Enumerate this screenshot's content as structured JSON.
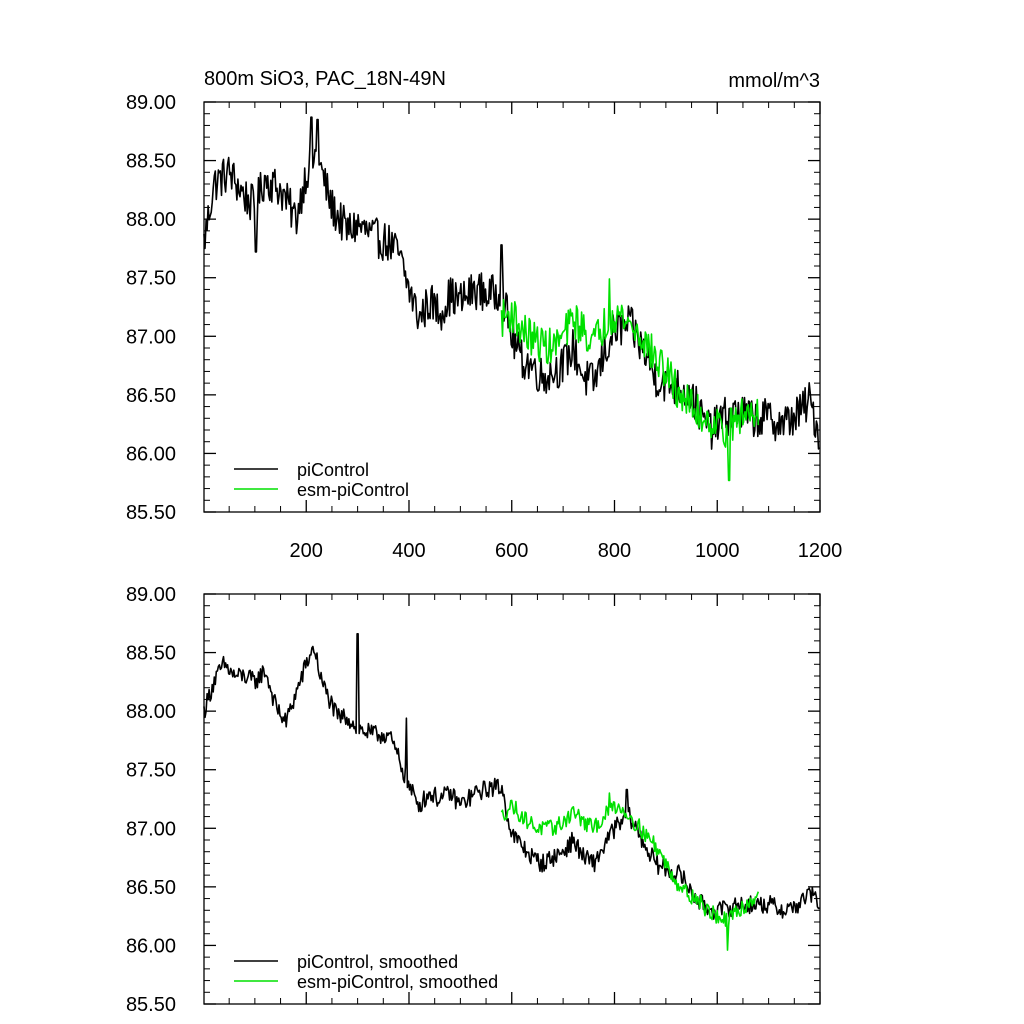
{
  "chart_data": [
    {
      "type": "line",
      "title": "800m SiO3, PAC_18N-49N",
      "units": "mmol/m^3",
      "xlim": [
        1,
        1200
      ],
      "ylim": [
        85.5,
        89.0
      ],
      "x_ticks": [
        200,
        400,
        600,
        800,
        1000,
        1200
      ],
      "y_ticks": [
        "85.50",
        "86.00",
        "86.50",
        "87.00",
        "87.50",
        "88.00",
        "88.50",
        "89.00"
      ],
      "legend_position": "bottom-left",
      "series": [
        {
          "name": "piControl",
          "color": "#000000",
          "x_start": 1,
          "x_end": 1200,
          "knots": [
            [
              1,
              87.8
            ],
            [
              20,
              88.3
            ],
            [
              50,
              88.4
            ],
            [
              80,
              88.2
            ],
            [
              100,
              88.1
            ],
            [
              120,
              88.35
            ],
            [
              150,
              88.25
            ],
            [
              180,
              88.0
            ],
            [
              200,
              88.4
            ],
            [
              220,
              88.55
            ],
            [
              250,
              88.1
            ],
            [
              280,
              87.9
            ],
            [
              300,
              87.95
            ],
            [
              330,
              87.85
            ],
            [
              360,
              87.8
            ],
            [
              380,
              87.7
            ],
            [
              400,
              87.4
            ],
            [
              420,
              87.15
            ],
            [
              440,
              87.3
            ],
            [
              460,
              87.2
            ],
            [
              480,
              87.35
            ],
            [
              500,
              87.3
            ],
            [
              530,
              87.4
            ],
            [
              560,
              87.35
            ],
            [
              580,
              87.4
            ],
            [
              600,
              87.0
            ],
            [
              620,
              86.8
            ],
            [
              640,
              86.75
            ],
            [
              660,
              86.65
            ],
            [
              680,
              86.7
            ],
            [
              700,
              86.75
            ],
            [
              720,
              86.9
            ],
            [
              740,
              86.65
            ],
            [
              760,
              86.6
            ],
            [
              780,
              86.85
            ],
            [
              800,
              87.05
            ],
            [
              830,
              87.1
            ],
            [
              860,
              86.85
            ],
            [
              880,
              86.65
            ],
            [
              900,
              86.6
            ],
            [
              930,
              86.55
            ],
            [
              950,
              86.5
            ],
            [
              970,
              86.3
            ],
            [
              990,
              86.2
            ],
            [
              1010,
              86.3
            ],
            [
              1040,
              86.35
            ],
            [
              1070,
              86.3
            ],
            [
              1100,
              86.3
            ],
            [
              1130,
              86.25
            ],
            [
              1160,
              86.35
            ],
            [
              1180,
              86.45
            ],
            [
              1200,
              86.15
            ]
          ],
          "noise": 0.17,
          "spikes": [
            [
              3,
              87.75
            ],
            [
              210,
              88.87
            ],
            [
              222,
              88.85
            ],
            [
              102,
              87.72
            ],
            [
              580,
              87.78
            ],
            [
              1200,
              86.05
            ]
          ]
        },
        {
          "name": "esm-piControl",
          "color": "#00e000",
          "x_start": 580,
          "x_end": 1080,
          "knots": [
            [
              580,
              87.15
            ],
            [
              600,
              87.2
            ],
            [
              620,
              87.05
            ],
            [
              650,
              86.95
            ],
            [
              680,
              86.9
            ],
            [
              700,
              87.0
            ],
            [
              720,
              87.15
            ],
            [
              740,
              87.05
            ],
            [
              760,
              86.95
            ],
            [
              780,
              87.1
            ],
            [
              800,
              87.2
            ],
            [
              820,
              87.15
            ],
            [
              840,
              87.05
            ],
            [
              860,
              86.95
            ],
            [
              880,
              86.8
            ],
            [
              900,
              86.7
            ],
            [
              920,
              86.55
            ],
            [
              940,
              86.45
            ],
            [
              960,
              86.35
            ],
            [
              980,
              86.3
            ],
            [
              1000,
              86.25
            ],
            [
              1020,
              86.2
            ],
            [
              1040,
              86.3
            ],
            [
              1060,
              86.35
            ],
            [
              1080,
              86.4
            ]
          ],
          "noise": 0.16,
          "spikes": [
            [
              790,
              87.49
            ],
            [
              1023,
              85.77
            ]
          ]
        }
      ]
    },
    {
      "type": "line",
      "xlim": [
        1,
        1200
      ],
      "ylim": [
        85.5,
        89.0
      ],
      "y_ticks": [
        "85.50",
        "86.00",
        "86.50",
        "87.00",
        "87.50",
        "88.00",
        "88.50",
        "89.00"
      ],
      "legend_position": "bottom-left",
      "series": [
        {
          "name": "piControl, smoothed",
          "color": "#000000",
          "x_start": 1,
          "x_end": 1200,
          "knots": [
            [
              1,
              88.0
            ],
            [
              20,
              88.25
            ],
            [
              40,
              88.4
            ],
            [
              60,
              88.3
            ],
            [
              80,
              88.3
            ],
            [
              100,
              88.25
            ],
            [
              120,
              88.35
            ],
            [
              140,
              88.05
            ],
            [
              160,
              87.9
            ],
            [
              180,
              88.15
            ],
            [
              200,
              88.4
            ],
            [
              215,
              88.55
            ],
            [
              230,
              88.25
            ],
            [
              260,
              87.95
            ],
            [
              280,
              87.95
            ],
            [
              300,
              87.85
            ],
            [
              330,
              87.8
            ],
            [
              360,
              87.8
            ],
            [
              380,
              87.6
            ],
            [
              400,
              87.35
            ],
            [
              420,
              87.2
            ],
            [
              440,
              87.3
            ],
            [
              460,
              87.25
            ],
            [
              480,
              87.3
            ],
            [
              500,
              87.2
            ],
            [
              530,
              87.3
            ],
            [
              560,
              87.35
            ],
            [
              580,
              87.35
            ],
            [
              600,
              86.95
            ],
            [
              620,
              86.85
            ],
            [
              640,
              86.75
            ],
            [
              660,
              86.7
            ],
            [
              680,
              86.75
            ],
            [
              700,
              86.8
            ],
            [
              720,
              86.9
            ],
            [
              740,
              86.75
            ],
            [
              760,
              86.7
            ],
            [
              780,
              86.85
            ],
            [
              800,
              87.0
            ],
            [
              830,
              87.1
            ],
            [
              860,
              86.85
            ],
            [
              880,
              86.7
            ],
            [
              900,
              86.65
            ],
            [
              930,
              86.6
            ],
            [
              950,
              86.45
            ],
            [
              970,
              86.35
            ],
            [
              990,
              86.3
            ],
            [
              1010,
              86.3
            ],
            [
              1040,
              86.35
            ],
            [
              1070,
              86.35
            ],
            [
              1100,
              86.35
            ],
            [
              1130,
              86.3
            ],
            [
              1160,
              86.35
            ],
            [
              1180,
              86.45
            ],
            [
              1200,
              86.35
            ]
          ],
          "noise": 0.08,
          "spikes": [
            [
              300,
              88.66
            ],
            [
              395,
              87.94
            ],
            [
              824,
              87.33
            ]
          ]
        },
        {
          "name": "esm-piControl, smoothed",
          "color": "#00e000",
          "x_start": 580,
          "x_end": 1080,
          "knots": [
            [
              580,
              87.1
            ],
            [
              600,
              87.2
            ],
            [
              620,
              87.1
            ],
            [
              650,
              87.0
            ],
            [
              680,
              87.0
            ],
            [
              700,
              87.05
            ],
            [
              720,
              87.15
            ],
            [
              740,
              87.05
            ],
            [
              760,
              87.0
            ],
            [
              780,
              87.1
            ],
            [
              800,
              87.2
            ],
            [
              820,
              87.15
            ],
            [
              840,
              87.05
            ],
            [
              860,
              86.95
            ],
            [
              880,
              86.85
            ],
            [
              900,
              86.7
            ],
            [
              920,
              86.55
            ],
            [
              940,
              86.45
            ],
            [
              960,
              86.4
            ],
            [
              980,
              86.3
            ],
            [
              1000,
              86.25
            ],
            [
              1020,
              86.2
            ],
            [
              1040,
              86.3
            ],
            [
              1060,
              86.35
            ],
            [
              1080,
              86.45
            ]
          ],
          "noise": 0.07,
          "spikes": [
            [
              790,
              87.3
            ],
            [
              1020,
              85.96
            ]
          ]
        }
      ]
    }
  ]
}
